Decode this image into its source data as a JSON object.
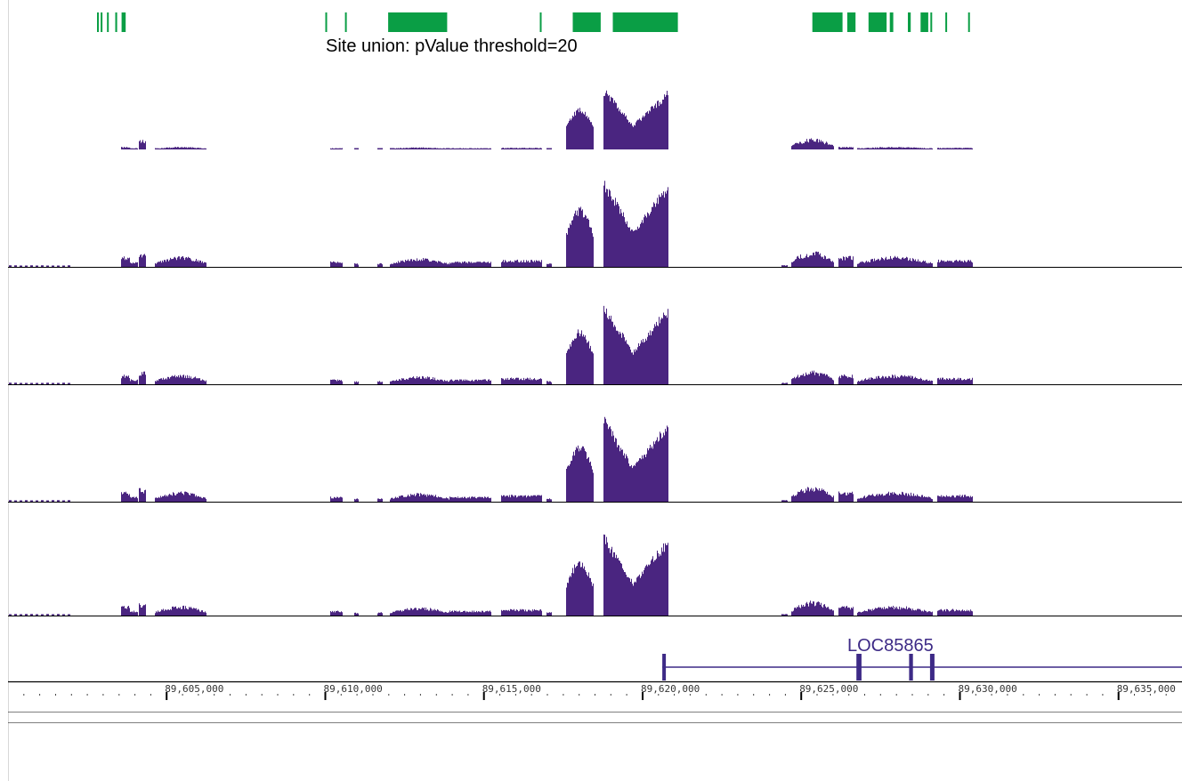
{
  "colors": {
    "site_block": "#0a9e45",
    "coverage": "#4a2580",
    "gene": "#3d2a86",
    "divider": "#000000",
    "ruler": "#000000",
    "panel_edge": "#d8d8d8"
  },
  "site_track": {
    "label": "Site union: pValue threshold=20",
    "coord_range": [
      89600000,
      89637000
    ],
    "blocks": [
      [
        89602805,
        89602850
      ],
      [
        89602920,
        89602960
      ],
      [
        89603120,
        89603160
      ],
      [
        89603380,
        89603440
      ],
      [
        89603580,
        89603710
      ],
      [
        89610000,
        89610050
      ],
      [
        89610620,
        89610650
      ],
      [
        89611980,
        89613840
      ],
      [
        89616760,
        89616810
      ],
      [
        89617800,
        89618680
      ],
      [
        89619060,
        89621110
      ],
      [
        89625350,
        89626300
      ],
      [
        89626450,
        89626710
      ],
      [
        89627120,
        89627690
      ],
      [
        89627790,
        89627900
      ],
      [
        89628360,
        89628450
      ],
      [
        89628760,
        89629000
      ],
      [
        89629070,
        89629120
      ],
      [
        89629540,
        89629590
      ],
      [
        89630260,
        89630310
      ]
    ]
  },
  "coverage_tracks": [
    {
      "name": "coverage-track-1"
    },
    {
      "name": "coverage-track-2"
    },
    {
      "name": "coverage-track-3"
    },
    {
      "name": "coverage-track-4"
    },
    {
      "name": "coverage-track-5"
    }
  ],
  "gene_track": {
    "name": "LOC85865",
    "exons": [
      [
        89620620,
        89620700
      ],
      [
        89626740,
        89626900
      ],
      [
        89628400,
        89628520
      ],
      [
        89629060,
        89629200
      ]
    ]
  },
  "ruler": {
    "ticks": [
      {
        "label": "89,605,000",
        "pos": 89605000
      },
      {
        "label": "89,610,000",
        "pos": 89610000
      },
      {
        "label": "89,615,000",
        "pos": 89615000
      },
      {
        "label": "89,620,000",
        "pos": 89620000
      },
      {
        "label": "89,625,000",
        "pos": 89625000
      },
      {
        "label": "89,630,000",
        "pos": 89630000
      },
      {
        "label": "89,635,000",
        "pos": 89635000
      }
    ]
  }
}
